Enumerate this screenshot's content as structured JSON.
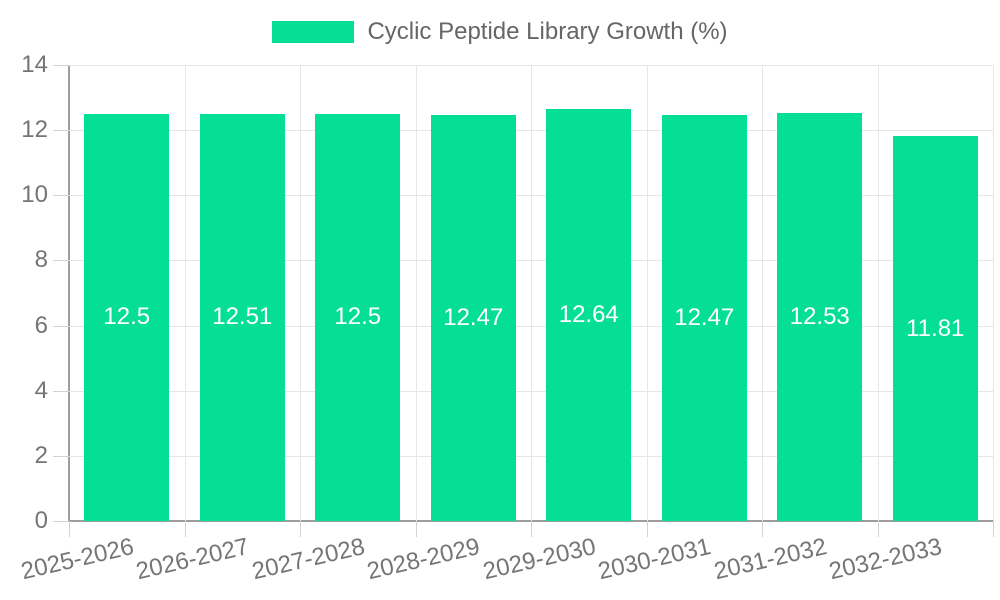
{
  "legend": {
    "label": "Cyclic Peptide Library Growth (%)"
  },
  "chart_data": {
    "type": "bar",
    "title": "Cyclic Peptide Library Growth (%)",
    "series_name": "Cyclic Peptide Library Growth (%)",
    "categories": [
      "2025-2026",
      "2026-2027",
      "2027-2028",
      "2028-2029",
      "2029-2030",
      "2030-2031",
      "2031-2032",
      "2032-2033"
    ],
    "values": [
      12.5,
      12.51,
      12.5,
      12.47,
      12.64,
      12.47,
      12.53,
      11.81
    ],
    "value_labels": [
      "12.5",
      "12.51",
      "12.5",
      "12.47",
      "12.64",
      "12.47",
      "12.53",
      "11.81"
    ],
    "xlabel": "",
    "ylabel": "",
    "ylim": [
      0,
      14
    ],
    "yticks": [
      0,
      2,
      4,
      6,
      8,
      10,
      12,
      14
    ],
    "grid": true,
    "legend_position": "top-center",
    "value_label_position": "center"
  },
  "colors": {
    "bar": "#04DF95",
    "value_label": "#FFFFFF",
    "grid_line": "#E6E6E6",
    "tick_line": "#D2D2D2",
    "axis_line": "#9E9E9E",
    "axis_text": "#757575",
    "legend_text": "#666666",
    "background": "#FFFFFF"
  }
}
